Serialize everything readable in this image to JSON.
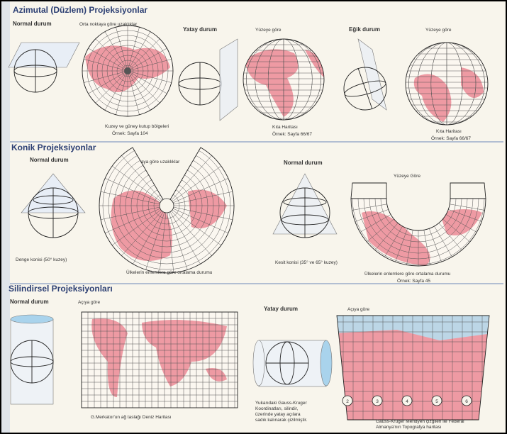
{
  "azimuthal": {
    "title": "Azimutal (Düzlem) Projeksiyonlar",
    "normal": "Normal durum",
    "distance": "Orta noktaya göre uzaklıklar",
    "polar_caption": "Kuzey ve güney kutup bölgeleri",
    "polar_example": "Örnek: Sayfa 104",
    "horizontal": "Yatay durum",
    "surface_1": "Yüzeye göre",
    "map_1": "Kıta Haritası",
    "example_1": "Örnek: Sayfa 66/67",
    "oblique": "Eğik durum",
    "surface_2": "Yüzeye göre",
    "map_2": "Kıta Haritası",
    "example_2": "Örnek: Sayfa 66/67"
  },
  "conic": {
    "title": "Konik Projeksiyonlar",
    "normal_1": "Normal durum",
    "distance": "Orta noktaya göre uzaklıklar",
    "balance_cone": "Denge konisi (50° kuzey)",
    "caption_1": "Ülkelerin enlemlere göre ortalama durumu",
    "normal_2": "Normal durum",
    "surface": "Yüzeye Göre",
    "secant_cone": "Kesit konisi (35° ve 65° kuzey)",
    "caption_2": "Ülkelerin enlemlere göre ortalama durumu",
    "example": "Örnek: Sayfa 45"
  },
  "cylindrical": {
    "title": "Silindirsel Projeksiyonları",
    "normal": "Normal durum",
    "angle_1": "Açıya göre",
    "mercator_caption": "G.Merkator'un ağ taslağı Deniz Haritası",
    "horizontal": "Yatay durum",
    "gauss_caption": [
      "Yukarıdaki Gauss-Kruger",
      "Koordinatları, silindir,",
      "üzerinde yatay açılara",
      "sadık kalınarak çizilmiştir."
    ],
    "angle_2": "Açıya göre",
    "topo_caption": [
      "Gauss-Krüger Meridyen çizgileri ile Federal",
      "Almanya'nın Topografya haritası"
    ],
    "zones": [
      "2",
      "3",
      "4",
      "5",
      "6"
    ]
  }
}
